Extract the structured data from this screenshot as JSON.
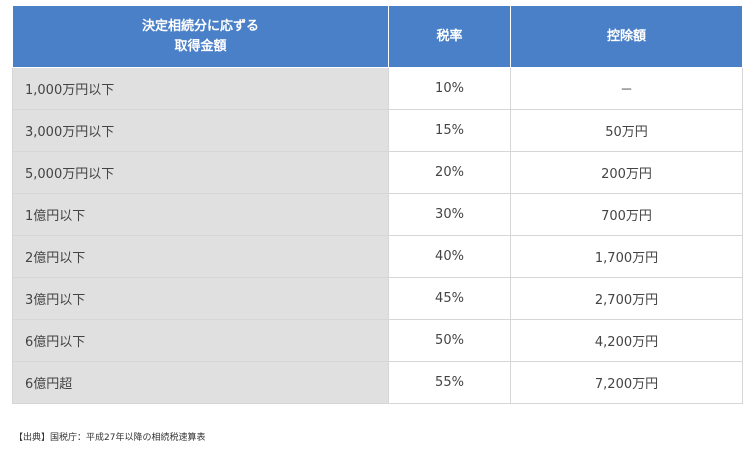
{
  "table": {
    "headers": {
      "amount_line1": "決定相続分に応ずる",
      "amount_line2": "取得金額",
      "rate": "税率",
      "deduction": "控除額"
    },
    "rows": [
      {
        "amount": "1,000万円以下",
        "rate": "10%",
        "deduction": "－"
      },
      {
        "amount": "3,000万円以下",
        "rate": "15%",
        "deduction": "50万円"
      },
      {
        "amount": "5,000万円以下",
        "rate": "20%",
        "deduction": "200万円"
      },
      {
        "amount": "1億円以下",
        "rate": "30%",
        "deduction": "700万円"
      },
      {
        "amount": "2億円以下",
        "rate": "40%",
        "deduction": "1,700万円"
      },
      {
        "amount": "3億円以下",
        "rate": "45%",
        "deduction": "2,700万円"
      },
      {
        "amount": "6億円以下",
        "rate": "50%",
        "deduction": "4,200万円"
      },
      {
        "amount": "6億円超",
        "rate": "55%",
        "deduction": "7,200万円"
      }
    ]
  },
  "source": {
    "text": "【出典】国税庁：平成27年以降の相続税速算表"
  },
  "colors": {
    "header_bg": "#4a80c8",
    "first_column_bg": "#e0e0e0"
  }
}
